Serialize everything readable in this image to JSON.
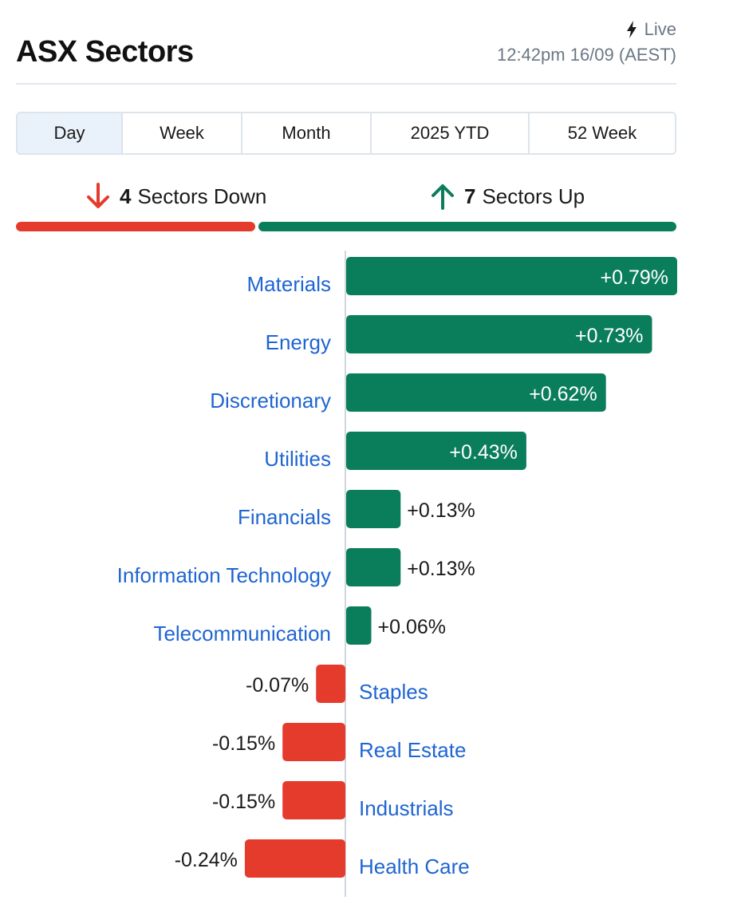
{
  "header": {
    "title": "ASX Sectors",
    "live_label": "Live",
    "timestamp": "12:42pm 16/09 (AEST)"
  },
  "tabs": [
    {
      "label": "Day",
      "active": true
    },
    {
      "label": "Week",
      "active": false
    },
    {
      "label": "Month",
      "active": false
    },
    {
      "label": "2025 YTD",
      "active": false
    },
    {
      "label": "52 Week",
      "active": false
    }
  ],
  "summary": {
    "down_count": "4",
    "down_text": "Sectors Down",
    "up_count": "7",
    "up_text": "Sectors Up"
  },
  "colors": {
    "up": "#0a7d5a",
    "down": "#e53b2c",
    "link": "#1f65d2"
  },
  "chart_data": {
    "type": "bar",
    "orientation": "horizontal",
    "unit": "%",
    "categories": [
      "Materials",
      "Energy",
      "Discretionary",
      "Utilities",
      "Financials",
      "Information Technology",
      "Telecommunication",
      "Staples",
      "Real Estate",
      "Industrials",
      "Health Care"
    ],
    "values": [
      0.79,
      0.73,
      0.62,
      0.43,
      0.13,
      0.13,
      0.06,
      -0.07,
      -0.15,
      -0.15,
      -0.24
    ],
    "value_labels": [
      "+0.79%",
      "+0.73%",
      "+0.62%",
      "+0.43%",
      "+0.13%",
      "+0.13%",
      "+0.06%",
      "-0.07%",
      "-0.15%",
      "-0.15%",
      "-0.24%"
    ],
    "xlim": [
      -0.24,
      0.79
    ],
    "grid": false,
    "legend": "none"
  }
}
